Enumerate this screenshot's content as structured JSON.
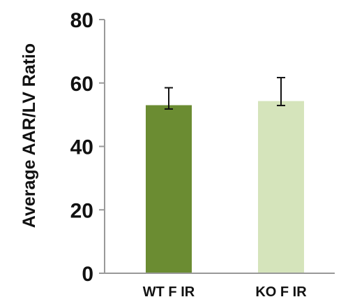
{
  "chart_data": {
    "type": "bar",
    "title": "",
    "xlabel": "",
    "ylabel": "Average AAR/LV Ratio",
    "ylim": [
      0,
      80
    ],
    "yticks": [
      0,
      20,
      40,
      60,
      80
    ],
    "ytick_labels": [
      "0",
      "20",
      "40",
      "60",
      "80"
    ],
    "categories": [
      "WT F IR",
      "KO F IR"
    ],
    "values": [
      53,
      54.3
    ],
    "error_upper": [
      58.5,
      61.7
    ],
    "error_lower": [
      51.8,
      52.9
    ],
    "colors": [
      "#6b8c32",
      "#d5e4bb"
    ],
    "grid": false,
    "legend": "none"
  }
}
